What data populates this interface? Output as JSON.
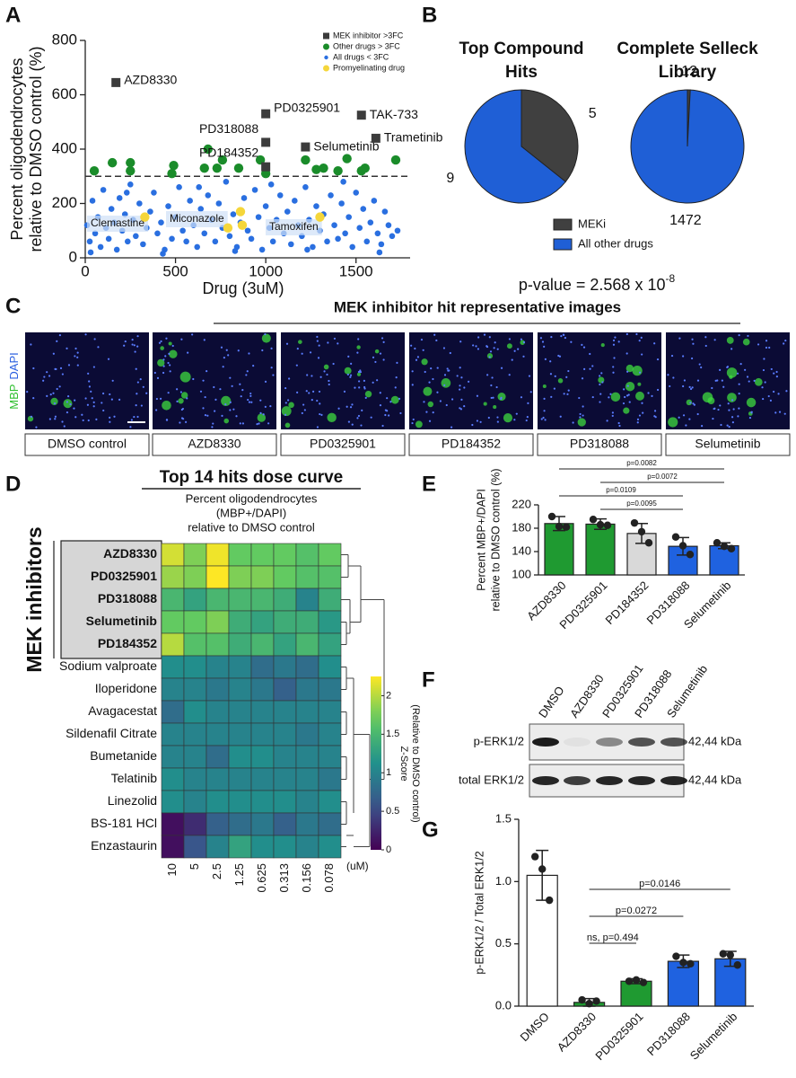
{
  "panel_labels": [
    "A",
    "B",
    "C",
    "D",
    "E",
    "F",
    "G"
  ],
  "chart_data": [
    {
      "type": "scatter",
      "x_label": "Drug (3uM)",
      "y_label": [
        "Percent oligodendrocytes",
        "relative to DMSO control (%)"
      ],
      "xlim": [
        0,
        1750
      ],
      "ylim": [
        0,
        800
      ],
      "xticks": [
        0,
        500,
        1000,
        1500
      ],
      "yticks": [
        0,
        200,
        400,
        600,
        800
      ],
      "threshold": 300,
      "legend": "upper right",
      "annotations": [
        "Clemastine",
        "Miconazole",
        "Tamoxifen"
      ],
      "series": [
        {
          "name": "MEK inhibitor >3FC",
          "color": "#3c3c3c",
          "marker": "square",
          "x": [
            170,
            1000,
            1000,
            1000,
            1220,
            1530,
            1610
          ],
          "values": [
            645,
            530,
            425,
            335,
            408,
            525,
            440
          ],
          "labels": [
            "AZD8330",
            "PD0325901",
            "PD318088",
            "PD184352",
            "Selumetinib",
            "TAK-733",
            "Trametinib"
          ]
        },
        {
          "name": "Other drugs > 3FC",
          "color": "#1a8c2a",
          "marker": "circle",
          "x": [
            50,
            150,
            250,
            250,
            490,
            480,
            680,
            660,
            730,
            760,
            850,
            970,
            1000,
            1220,
            1280,
            1320,
            1400,
            1450,
            1530,
            1550,
            1720
          ],
          "values": [
            320,
            350,
            350,
            320,
            340,
            310,
            400,
            330,
            330,
            360,
            330,
            360,
            310,
            360,
            325,
            330,
            320,
            365,
            320,
            330,
            360
          ]
        },
        {
          "name": "All drugs < 3FC",
          "color": "#2a6fe0",
          "marker": "dot",
          "x": [
            10,
            25,
            40,
            55,
            70,
            85,
            100,
            115,
            130,
            145,
            160,
            175,
            190,
            205,
            220,
            235,
            250,
            265,
            280,
            300,
            320,
            340,
            360,
            380,
            400,
            420,
            440,
            460,
            480,
            500,
            520,
            540,
            560,
            580,
            600,
            620,
            640,
            660,
            680,
            700,
            720,
            740,
            760,
            780,
            800,
            820,
            840,
            860,
            880,
            900,
            920,
            940,
            960,
            980,
            1000,
            1020,
            1040,
            1060,
            1080,
            1100,
            1120,
            1140,
            1160,
            1180,
            1200,
            1220,
            1240,
            1260,
            1280,
            1300,
            1320,
            1340,
            1360,
            1380,
            1400,
            1420,
            1440,
            1460,
            1480,
            1500,
            1520,
            1540,
            1560,
            1580,
            1600,
            1620,
            1640,
            1660,
            1680,
            1700,
            30,
            230,
            430,
            630,
            830,
            1030,
            1230,
            1430,
            1630,
            1730
          ],
          "values": [
            120,
            60,
            210,
            90,
            150,
            40,
            250,
            110,
            70,
            180,
            130,
            30,
            220,
            100,
            160,
            60,
            270,
            140,
            80,
            200,
            50,
            110,
            170,
            240,
            90,
            130,
            30,
            190,
            70,
            150,
            260,
            100,
            60,
            210,
            120,
            40,
            180,
            90,
            230,
            140,
            60,
            200,
            110,
            280,
            80,
            160,
            40,
            130,
            220,
            100,
            70,
            250,
            150,
            30,
            190,
            110,
            60,
            140,
            230,
            90,
            170,
            50,
            210,
            120,
            80,
            260,
            140,
            40,
            190,
            100,
            160,
            60,
            230,
            120,
            70,
            200,
            90,
            150,
            40,
            240,
            110,
            180,
            60,
            130,
            210,
            90,
            50,
            170,
            120,
            80,
            20,
            240,
            15,
            260,
            25,
            270,
            30,
            280,
            20,
            100
          ]
        },
        {
          "name": "Promyelinating drug",
          "color": "#f5d63a",
          "marker": "circle",
          "x": [
            330,
            790,
            860,
            870,
            1300
          ],
          "values": [
            150,
            110,
            170,
            120,
            150
          ]
        }
      ]
    },
    {
      "type": "pie",
      "categories": [
        "MEKi",
        "All other drugs"
      ],
      "colors": [
        "#404040",
        "#1f5fd6"
      ],
      "pies": [
        {
          "title": [
            "Top Compound",
            "Hits"
          ],
          "values": [
            5,
            9
          ]
        },
        {
          "title": [
            "Complete Selleck",
            "Library"
          ],
          "values": [
            12,
            1472
          ]
        }
      ],
      "annotation": {
        "text": "p-value = 2.568 x 10",
        "superscript": "-8"
      }
    },
    {
      "type": "heatmap",
      "title": "Top 14 hits dose curve",
      "subtitle": [
        "Percent oligodendrocytes",
        "(MBP+/DAPI)",
        "relative to DMSO control"
      ],
      "rows": [
        "AZD8330",
        "PD0325901",
        "PD318088",
        "Selumetinib",
        "PD184352",
        "Sodium valproate",
        "Iloperidone",
        "Avagacestat",
        "Sildenafil Citrate",
        "Bumetanide",
        "Telatinib",
        "Linezolid",
        "BS-181 HCl",
        "Enzastaurin"
      ],
      "columns": [
        10,
        5,
        2.5,
        1.25,
        0.625,
        0.313,
        0.156,
        0.078
      ],
      "column_unit": "(uM)",
      "values": [
        [
          2.1,
          1.8,
          2.2,
          1.7,
          1.7,
          1.7,
          1.6,
          1.7
        ],
        [
          1.9,
          1.8,
          2.3,
          1.8,
          1.8,
          1.7,
          1.6,
          1.6
        ],
        [
          1.5,
          1.3,
          1.5,
          1.5,
          1.5,
          1.4,
          1.0,
          1.4
        ],
        [
          1.7,
          1.7,
          1.8,
          1.4,
          1.3,
          1.4,
          1.4,
          1.2
        ],
        [
          2.0,
          1.6,
          1.6,
          1.4,
          1.5,
          1.3,
          1.5,
          1.3
        ],
        [
          1.1,
          1.1,
          1.0,
          1.0,
          0.8,
          0.9,
          0.8,
          1.1
        ],
        [
          1.0,
          1.0,
          0.9,
          1.0,
          0.9,
          0.7,
          0.9,
          0.9
        ],
        [
          0.8,
          1.1,
          1.0,
          1.0,
          1.0,
          1.0,
          1.0,
          1.0
        ],
        [
          1.0,
          1.0,
          1.0,
          1.0,
          1.0,
          1.0,
          0.9,
          1.0
        ],
        [
          1.0,
          1.0,
          0.8,
          1.1,
          1.1,
          1.0,
          1.0,
          1.0
        ],
        [
          1.1,
          1.0,
          1.0,
          1.0,
          1.0,
          1.0,
          1.0,
          0.9
        ],
        [
          1.1,
          1.0,
          1.1,
          1.1,
          1.1,
          1.1,
          1.0,
          1.1
        ],
        [
          0.1,
          0.3,
          0.7,
          0.8,
          0.9,
          0.7,
          0.9,
          0.8
        ],
        [
          0.1,
          0.6,
          1.0,
          1.3,
          1.1,
          1.1,
          1.0,
          1.1
        ]
      ],
      "colormap": "viridis",
      "zlim": [
        0,
        2.25
      ],
      "zticks": [
        0,
        0.5,
        1,
        1.5,
        2
      ],
      "colorbar_label": [
        "Z-Score",
        "(Relative to DMSO control)"
      ],
      "groups": [
        {
          "label": "MEK inhibitors",
          "rows": [
            0,
            4
          ]
        }
      ]
    },
    {
      "type": "bar",
      "y_label": [
        "Percent MBP+/DAPI",
        "relative to DMSO control (%)"
      ],
      "categories": [
        "AZD8330",
        "PD0325901",
        "PD184352",
        "PD318088",
        "Selumetinib"
      ],
      "values": [
        188,
        187,
        171,
        149,
        150
      ],
      "errors": [
        12,
        9,
        17,
        15,
        5
      ],
      "points": [
        [
          200,
          183,
          182
        ],
        [
          195,
          186,
          185
        ],
        [
          189,
          174,
          155
        ],
        [
          165,
          150,
          135
        ],
        [
          155,
          149,
          145
        ]
      ],
      "colors": [
        "#1f9a31",
        "#1f9a31",
        "#d9d9d9",
        "#1f62e0",
        "#1f62e0"
      ],
      "ylim": [
        100,
        220
      ],
      "yticks": [
        100,
        140,
        180,
        220
      ],
      "comparisons": [
        {
          "pair": [
            0,
            4
          ],
          "label": "p=0.0082"
        },
        {
          "pair": [
            1,
            4
          ],
          "label": "p=0.0072"
        },
        {
          "pair": [
            0,
            3
          ],
          "label": "p=0.0109"
        },
        {
          "pair": [
            1,
            3
          ],
          "label": "p=0.0095"
        }
      ]
    },
    {
      "type": "bar",
      "y_label": [
        "p-ERK1/2 / Total ERK1/2"
      ],
      "categories": [
        "DMSO",
        "AZD8330",
        "PD0325901",
        "PD318088",
        "Selumetinib"
      ],
      "label_colors": [
        "#111111",
        "#1a8c2a",
        "#1a8c2a",
        "#1f5fd6",
        "#1f5fd6"
      ],
      "values": [
        1.05,
        0.03,
        0.2,
        0.36,
        0.38
      ],
      "errors": [
        0.2,
        0.03,
        0.02,
        0.05,
        0.06
      ],
      "points": [
        [
          1.2,
          1.1,
          0.85
        ],
        [
          0.05,
          0.02,
          0.04
        ],
        [
          0.2,
          0.21,
          0.19
        ],
        [
          0.4,
          0.35,
          0.34
        ],
        [
          0.42,
          0.41,
          0.33
        ]
      ],
      "colors": [
        "#ffffff",
        "#1f9a31",
        "#1f9a31",
        "#1f62e0",
        "#1f62e0"
      ],
      "ylim": [
        0,
        1.5
      ],
      "yticks": [
        {
          "value": 0,
          "label": "0.0"
        },
        0.5,
        {
          "value": 1,
          "label": "1.0"
        },
        1.5
      ],
      "comparisons": [
        {
          "pair": [
            1,
            4
          ],
          "label": "p=0.0146"
        },
        {
          "pair": [
            1,
            3
          ],
          "label": "p=0.0272"
        },
        {
          "pair": [
            1,
            2
          ],
          "label": "ns, p=0.494"
        }
      ]
    }
  ],
  "images": {
    "panel_c": {
      "title": "MEK inhibitor hit representative images",
      "channels": [
        "MBP",
        "DAPI"
      ],
      "channel_colors": [
        "#2fbf2f",
        "#2a5fe0"
      ],
      "labels": [
        "DMSO control",
        "AZD8330",
        "PD0325901",
        "PD184352",
        "PD318088",
        "Selumetinib"
      ]
    },
    "panel_f": {
      "lanes": [
        {
          "label": "DMSO",
          "color": "#111111"
        },
        {
          "label": "AZD8330",
          "color": "#1a8c2a"
        },
        {
          "label": "PD0325901",
          "color": "#1a8c2a"
        },
        {
          "label": "PD318088",
          "color": "#1f5fd6"
        },
        {
          "label": "Selumetinib",
          "color": "#1f5fd6"
        }
      ],
      "rows": [
        "p-ERK1/2",
        "total ERK1/2"
      ],
      "size_label": "42,44 kDa"
    }
  }
}
